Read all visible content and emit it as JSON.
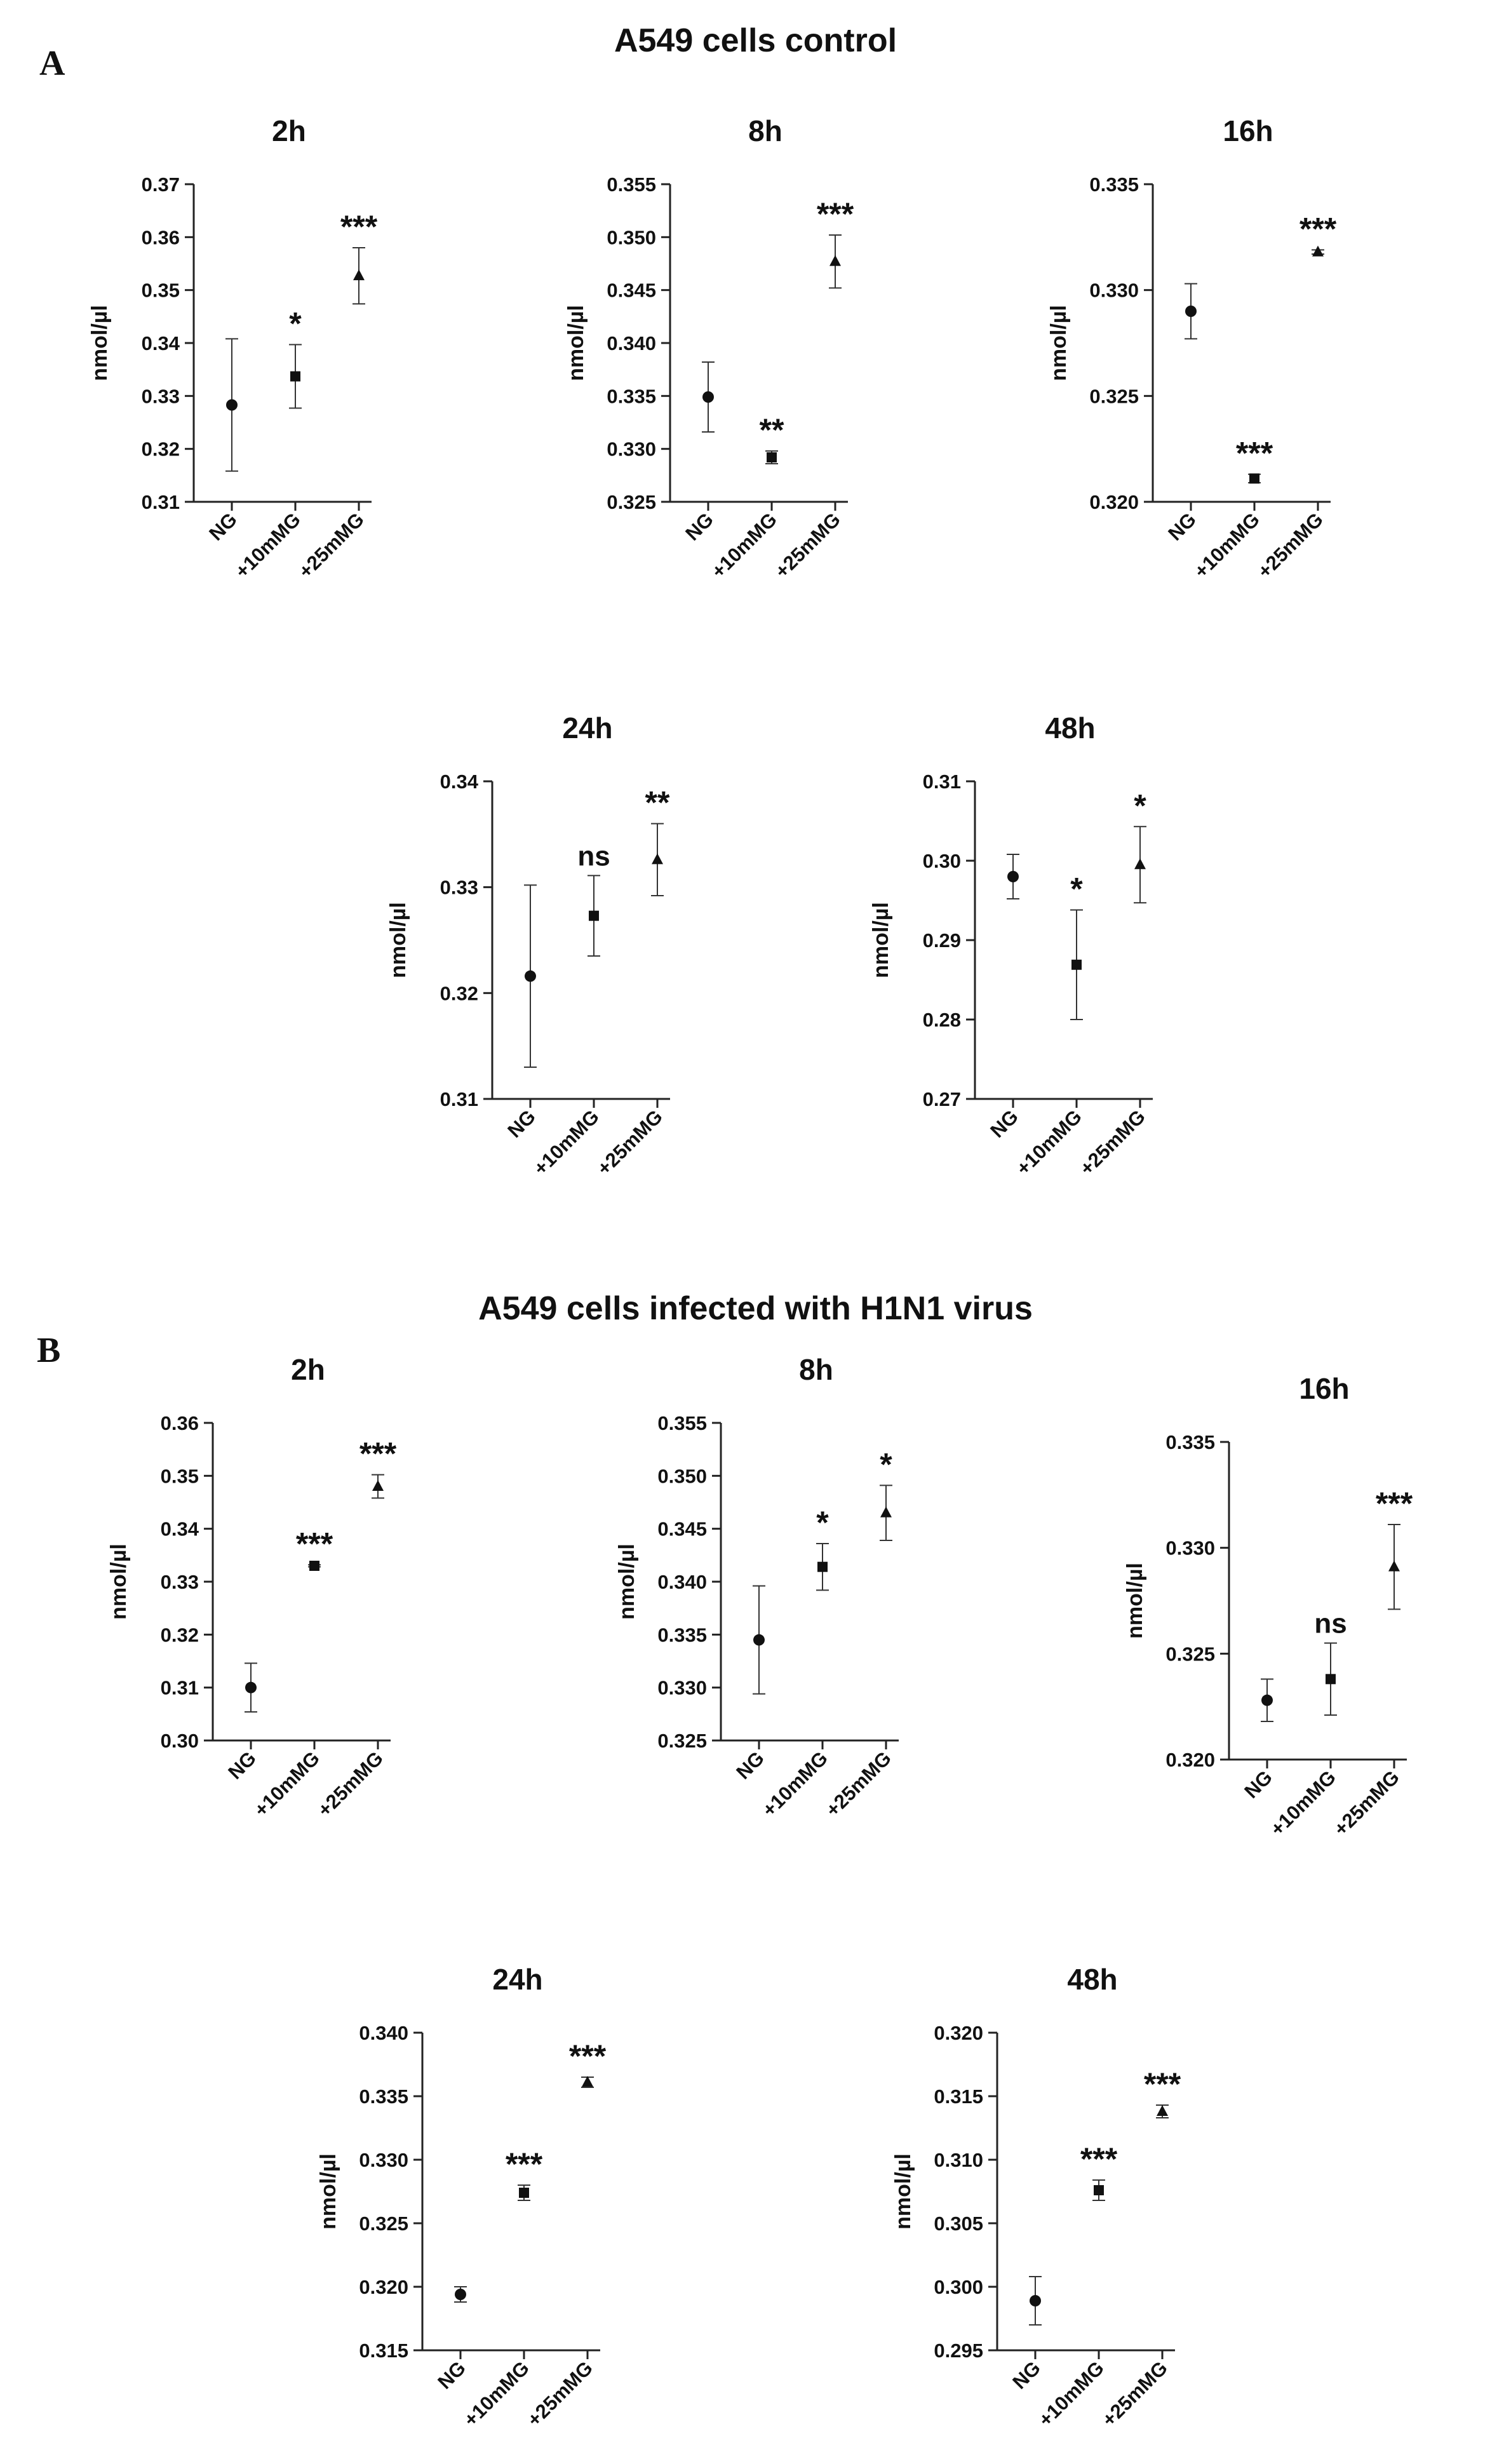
{
  "panels": [
    {
      "letter": "A",
      "title": "A549 cells control"
    },
    {
      "letter": "B",
      "title": "A549 cells infected with H1N1 virus"
    }
  ],
  "chart_data": [
    {
      "panel": "A",
      "type": "scatter",
      "title": "2h",
      "ylabel": "nmol/µl",
      "categories": [
        "NG",
        "+10mMG",
        "+25mMG"
      ],
      "ylim": [
        0.31,
        0.37
      ],
      "yticks": [
        "0.31",
        "0.32",
        "0.33",
        "0.34",
        "0.35",
        "0.36",
        "0.37"
      ],
      "markers": [
        "circle",
        "square",
        "triangle"
      ],
      "means": [
        0.3283,
        0.3337,
        0.3527
      ],
      "errors": [
        0.0125,
        0.006,
        0.0053
      ],
      "significance": [
        "",
        "*",
        "***"
      ]
    },
    {
      "panel": "A",
      "type": "scatter",
      "title": "8h",
      "ylabel": "nmol/µl",
      "categories": [
        "NG",
        "+10mMG",
        "+25mMG"
      ],
      "ylim": [
        0.325,
        0.355
      ],
      "yticks": [
        "0.325",
        "0.330",
        "0.335",
        "0.340",
        "0.345",
        "0.350",
        "0.355"
      ],
      "markers": [
        "circle",
        "square",
        "triangle"
      ],
      "means": [
        0.3349,
        0.3292,
        0.3477
      ],
      "errors": [
        0.0033,
        0.0006,
        0.0025
      ],
      "significance": [
        "",
        "**",
        "***"
      ]
    },
    {
      "panel": "A",
      "type": "scatter",
      "title": "16h",
      "ylabel": "nmol/µl",
      "categories": [
        "NG",
        "+10mMG",
        "+25mMG"
      ],
      "ylim": [
        0.32,
        0.335
      ],
      "yticks": [
        "0.320",
        "0.325",
        "0.330",
        "0.335"
      ],
      "markers": [
        "circle",
        "square",
        "triangle"
      ],
      "means": [
        0.329,
        0.3211,
        0.3318
      ],
      "errors": [
        0.0013,
        0.0002,
        0.0001
      ],
      "significance": [
        "",
        "***",
        "***"
      ]
    },
    {
      "panel": "A",
      "type": "scatter",
      "title": "24h",
      "ylabel": "nmol/µl",
      "categories": [
        "NG",
        "+10mMG",
        "+25mMG"
      ],
      "ylim": [
        0.31,
        0.34
      ],
      "yticks": [
        "0.31",
        "0.32",
        "0.33",
        "0.34"
      ],
      "markers": [
        "circle",
        "square",
        "triangle"
      ],
      "means": [
        0.3216,
        0.3273,
        0.3326
      ],
      "errors": [
        0.0086,
        0.0038,
        0.0034
      ],
      "significance": [
        "",
        "ns",
        "**"
      ]
    },
    {
      "panel": "A",
      "type": "scatter",
      "title": "48h",
      "ylabel": "nmol/µl",
      "categories": [
        "NG",
        "+10mMG",
        "+25mMG"
      ],
      "ylim": [
        0.27,
        0.31
      ],
      "yticks": [
        "0.27",
        "0.28",
        "0.29",
        "0.30",
        "0.31"
      ],
      "markers": [
        "circle",
        "square",
        "triangle"
      ],
      "means": [
        0.298,
        0.2869,
        0.2995
      ],
      "errors": [
        0.0028,
        0.0069,
        0.0048
      ],
      "significance": [
        "",
        "*",
        "*"
      ]
    },
    {
      "panel": "B",
      "type": "scatter",
      "title": "2h",
      "ylabel": "nmol/µl",
      "categories": [
        "NG",
        "+10mMG",
        "+25mMG"
      ],
      "ylim": [
        0.3,
        0.36
      ],
      "yticks": [
        "0.30",
        "0.31",
        "0.32",
        "0.33",
        "0.34",
        "0.35",
        "0.36"
      ],
      "markers": [
        "circle",
        "square",
        "triangle"
      ],
      "means": [
        0.31,
        0.333,
        0.348
      ],
      "errors": [
        0.0046,
        0.0002,
        0.0022
      ],
      "significance": [
        "",
        "***",
        "***"
      ]
    },
    {
      "panel": "B",
      "type": "scatter",
      "title": "8h",
      "ylabel": "nmol/µl",
      "categories": [
        "NG",
        "+10mMG",
        "+25mMG"
      ],
      "ylim": [
        0.325,
        0.355
      ],
      "yticks": [
        "0.325",
        "0.330",
        "0.335",
        "0.340",
        "0.345",
        "0.350",
        "0.355"
      ],
      "markers": [
        "circle",
        "square",
        "triangle"
      ],
      "means": [
        0.3345,
        0.3414,
        0.3465
      ],
      "errors": [
        0.0051,
        0.0022,
        0.0026
      ],
      "significance": [
        "",
        "*",
        "*"
      ]
    },
    {
      "panel": "B",
      "type": "scatter",
      "title": "16h",
      "ylabel": "nmol/µl",
      "categories": [
        "NG",
        "+10mMG",
        "+25mMG"
      ],
      "ylim": [
        0.32,
        0.335
      ],
      "yticks": [
        "0.320",
        "0.325",
        "0.330",
        "0.335"
      ],
      "markers": [
        "circle",
        "square",
        "triangle"
      ],
      "means": [
        0.3228,
        0.3238,
        0.3291
      ],
      "errors": [
        0.001,
        0.0017,
        0.002
      ],
      "significance": [
        "",
        "ns",
        "***"
      ]
    },
    {
      "panel": "B",
      "type": "scatter",
      "title": "24h",
      "ylabel": "nmol/µl",
      "categories": [
        "NG",
        "+10mMG",
        "+25mMG"
      ],
      "ylim": [
        0.315,
        0.34
      ],
      "yticks": [
        "0.315",
        "0.320",
        "0.325",
        "0.330",
        "0.335",
        "0.340"
      ],
      "markers": [
        "circle",
        "square",
        "triangle"
      ],
      "means": [
        0.3194,
        0.3274,
        0.3361
      ],
      "errors": [
        0.0006,
        0.0006,
        0.0004
      ],
      "significance": [
        "",
        "***",
        "***"
      ]
    },
    {
      "panel": "B",
      "type": "scatter",
      "title": "48h",
      "ylabel": "nmol/µl",
      "categories": [
        "NG",
        "+10mMG",
        "+25mMG"
      ],
      "ylim": [
        0.295,
        0.32
      ],
      "yticks": [
        "0.295",
        "0.300",
        "0.305",
        "0.310",
        "0.315",
        "0.320"
      ],
      "markers": [
        "circle",
        "square",
        "triangle"
      ],
      "means": [
        0.2989,
        0.3076,
        0.3138
      ],
      "errors": [
        0.0019,
        0.0008,
        0.0005
      ],
      "significance": [
        "",
        "***",
        "***"
      ]
    }
  ]
}
